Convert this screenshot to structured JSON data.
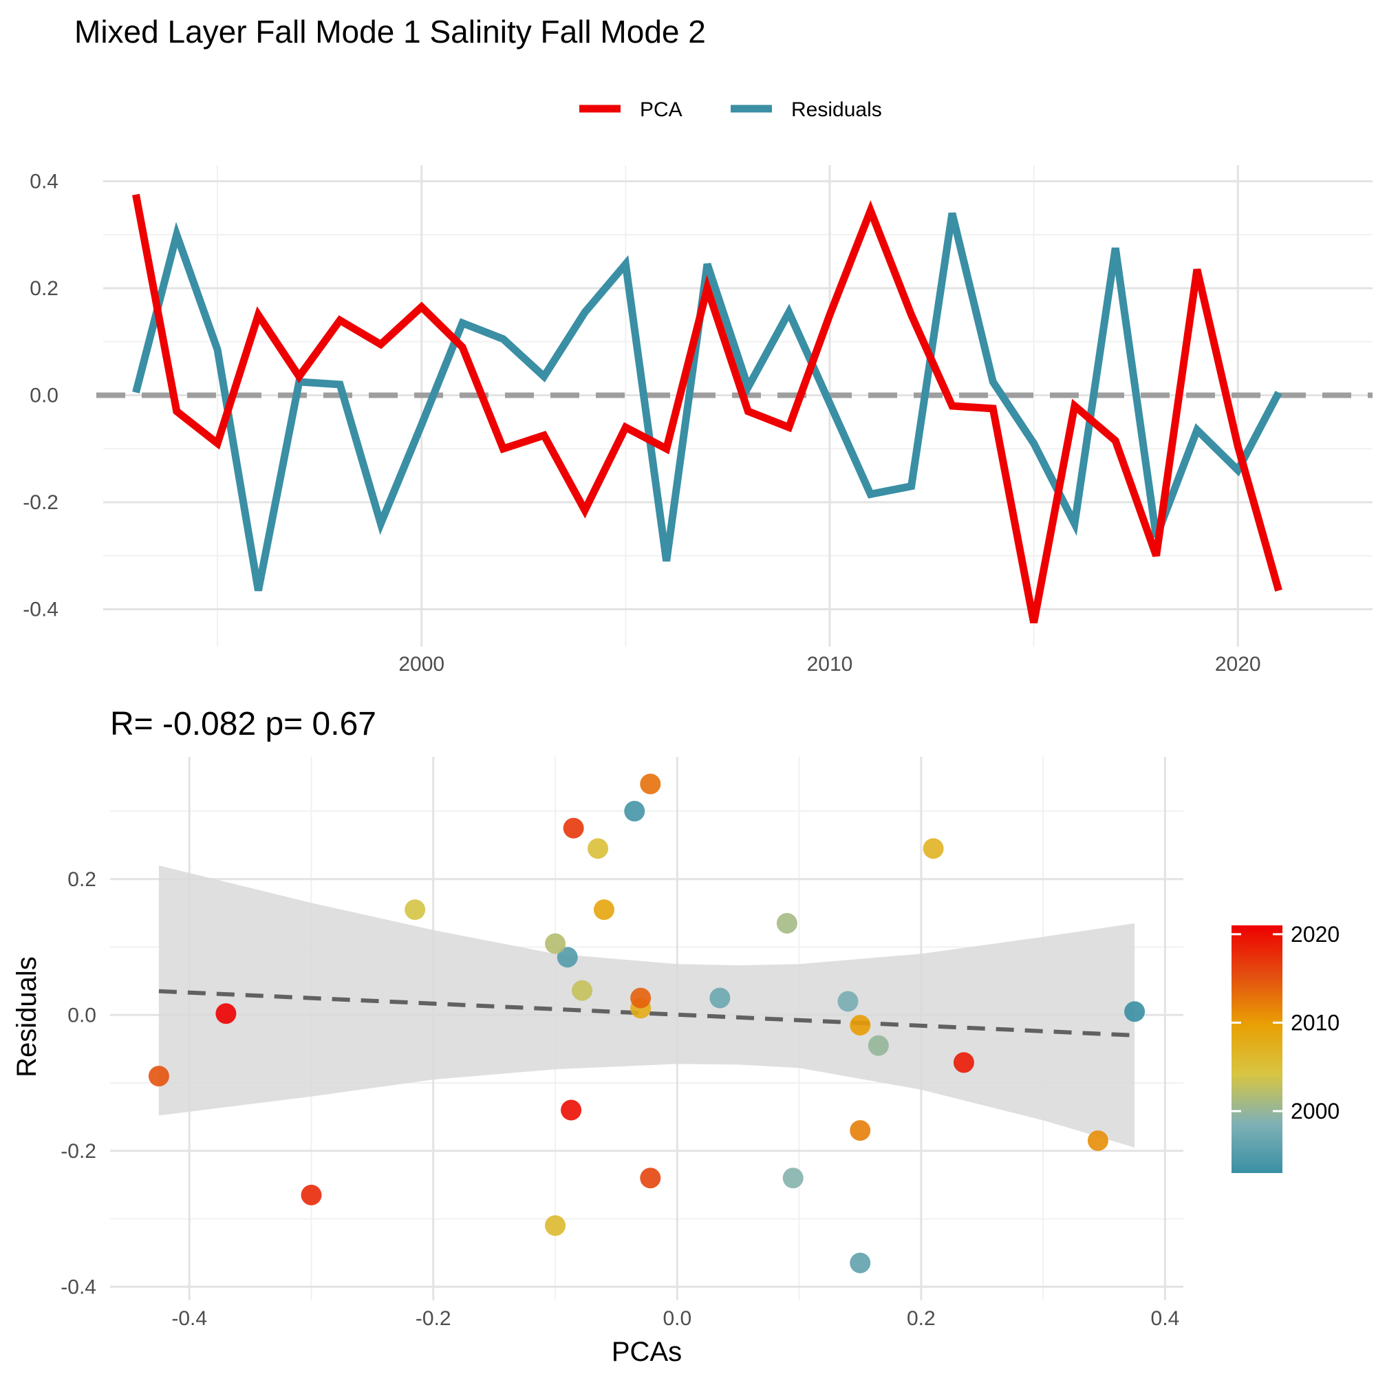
{
  "title": "Mixed Layer Fall Mode 1 Salinity Fall Mode 2",
  "colors": {
    "pca": "#EE0000",
    "residuals": "#3A8FA4",
    "zero_line": "#9E9E9E",
    "grid_major": "#E3E3E3",
    "grid_minor": "#F1F1F1",
    "ribbon": "#D9D9D9",
    "fit_line": "#616161",
    "gradient": [
      "#3A8FA4",
      "#7FB1B5",
      "#D8C542",
      "#E8A004",
      "#E44D10",
      "#EE0000"
    ]
  },
  "chart_data": [
    {
      "type": "line",
      "legend": {
        "placement": "top-center",
        "entries": [
          "PCA",
          "Residuals"
        ]
      },
      "x_ticks": [
        "2000",
        "2010",
        "2020"
      ],
      "y_ticks": [
        "0.4",
        "0.2",
        "0.0",
        "-0.2",
        "-0.4"
      ],
      "x_tick_values": [
        2000,
        2010,
        2020
      ],
      "y_tick_values": [
        0.4,
        0.2,
        0.0,
        -0.2,
        -0.4
      ],
      "xlim": [
        1992.2,
        2023.3
      ],
      "ylim": [
        -0.47,
        0.43
      ],
      "reference_line": {
        "y": 0,
        "style": "dashed"
      },
      "x": [
        1993,
        1994,
        1995,
        1996,
        1997,
        1998,
        1999,
        2000,
        2001,
        2002,
        2003,
        2004,
        2005,
        2006,
        2007,
        2008,
        2009,
        2010,
        2011,
        2012,
        2013,
        2014,
        2015,
        2016,
        2017,
        2018,
        2019,
        2020,
        2021
      ],
      "series": [
        {
          "name": "PCA",
          "values": [
            0.375,
            -0.03,
            -0.09,
            0.15,
            0.035,
            0.14,
            0.095,
            0.165,
            0.09,
            -0.1,
            -0.075,
            -0.215,
            -0.06,
            -0.1,
            0.2,
            -0.03,
            -0.06,
            0.15,
            0.345,
            0.15,
            -0.02,
            -0.025,
            -0.425,
            -0.02,
            -0.085,
            -0.3,
            0.235,
            -0.095,
            -0.365
          ]
        },
        {
          "name": "Residuals",
          "values": [
            0.005,
            0.3,
            0.085,
            -0.365,
            0.025,
            0.02,
            -0.24,
            -0.055,
            0.135,
            0.105,
            0.035,
            0.155,
            0.245,
            -0.31,
            0.245,
            0.015,
            0.155,
            -0.015,
            -0.185,
            -0.17,
            0.34,
            0.025,
            -0.09,
            -0.24,
            0.275,
            -0.265,
            -0.065,
            -0.14,
            0.005
          ]
        }
      ]
    },
    {
      "type": "scatter",
      "subtitle": "R= -0.082  p= 0.67",
      "xlabel": "PCAs",
      "ylabel": "Residuals",
      "x_ticks": [
        "-0.4",
        "-0.2",
        "0.0",
        "0.2",
        "0.4"
      ],
      "y_ticks": [
        "0.2",
        "0.0",
        "-0.2",
        "-0.4"
      ],
      "x_tick_values": [
        -0.4,
        -0.2,
        0.0,
        0.2,
        0.4
      ],
      "y_tick_values": [
        0.2,
        0.0,
        -0.2,
        -0.4
      ],
      "xlim": [
        -0.465,
        0.415
      ],
      "ylim": [
        -0.42,
        0.38
      ],
      "colorbar": {
        "placement": "right",
        "ticks": [
          "2020",
          "2010",
          "2000"
        ],
        "tick_values": [
          2020,
          2010,
          2000
        ],
        "range": [
          1993,
          2021
        ]
      },
      "fit": {
        "x": [
          -0.425,
          0.375
        ],
        "y": [
          0.035,
          -0.03
        ],
        "style": "dashed"
      },
      "ribbon": {
        "x": [
          -0.425,
          -0.3,
          -0.2,
          -0.1,
          0.0,
          0.05,
          0.1,
          0.2,
          0.3,
          0.375
        ],
        "upper": [
          0.22,
          0.165,
          0.125,
          0.09,
          0.075,
          0.073,
          0.075,
          0.09,
          0.115,
          0.135
        ],
        "lower": [
          -0.148,
          -0.12,
          -0.095,
          -0.08,
          -0.072,
          -0.073,
          -0.078,
          -0.11,
          -0.155,
          -0.195
        ]
      },
      "points": [
        {
          "x": 0.375,
          "y": 0.005,
          "year": 1993
        },
        {
          "x": -0.035,
          "y": 0.3,
          "year": 1994
        },
        {
          "x": -0.09,
          "y": 0.085,
          "year": 1995
        },
        {
          "x": 0.15,
          "y": -0.365,
          "year": 1996
        },
        {
          "x": 0.035,
          "y": 0.025,
          "year": 1997
        },
        {
          "x": 0.14,
          "y": 0.02,
          "year": 1998
        },
        {
          "x": 0.095,
          "y": -0.24,
          "year": 1999
        },
        {
          "x": 0.165,
          "y": -0.045,
          "year": 2000
        },
        {
          "x": 0.09,
          "y": 0.135,
          "year": 2001
        },
        {
          "x": -0.1,
          "y": 0.105,
          "year": 2002
        },
        {
          "x": -0.078,
          "y": 0.036,
          "year": 2003
        },
        {
          "x": -0.215,
          "y": 0.155,
          "year": 2004
        },
        {
          "x": -0.065,
          "y": 0.245,
          "year": 2005
        },
        {
          "x": -0.1,
          "y": -0.31,
          "year": 2006
        },
        {
          "x": 0.21,
          "y": 0.245,
          "year": 2007
        },
        {
          "x": -0.03,
          "y": 0.01,
          "year": 2008
        },
        {
          "x": -0.06,
          "y": 0.155,
          "year": 2009
        },
        {
          "x": 0.15,
          "y": -0.015,
          "year": 2010
        },
        {
          "x": 0.345,
          "y": -0.185,
          "year": 2011
        },
        {
          "x": 0.15,
          "y": -0.17,
          "year": 2012
        },
        {
          "x": -0.022,
          "y": 0.34,
          "year": 2013
        },
        {
          "x": -0.03,
          "y": 0.025,
          "year": 2014
        },
        {
          "x": -0.425,
          "y": -0.09,
          "year": 2015
        },
        {
          "x": -0.022,
          "y": -0.24,
          "year": 2016
        },
        {
          "x": -0.085,
          "y": 0.275,
          "year": 2017
        },
        {
          "x": -0.3,
          "y": -0.265,
          "year": 2018
        },
        {
          "x": 0.235,
          "y": -0.07,
          "year": 2019
        },
        {
          "x": -0.087,
          "y": -0.14,
          "year": 2020
        },
        {
          "x": -0.37,
          "y": 0.002,
          "year": 2021
        }
      ]
    }
  ]
}
